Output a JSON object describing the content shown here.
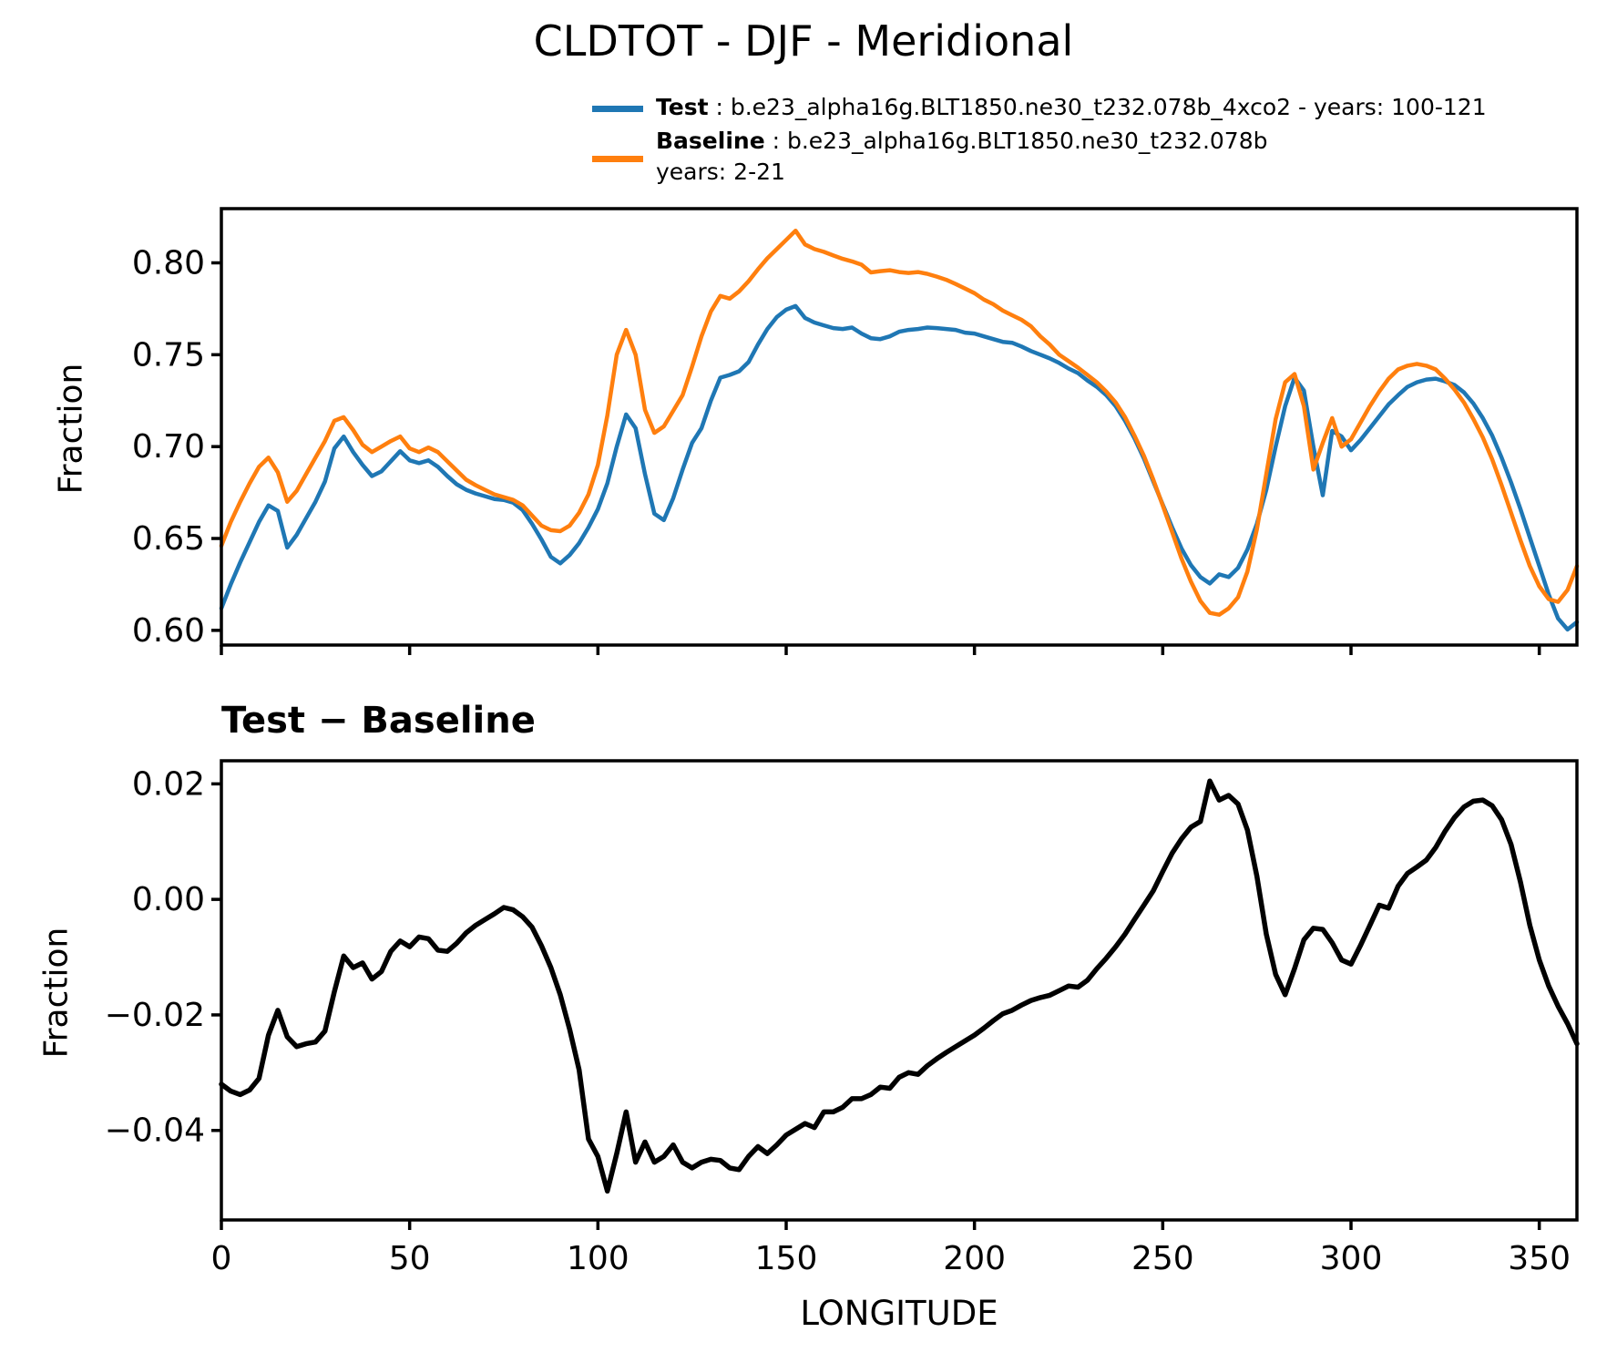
{
  "title": "CLDTOT - DJF - Meridional",
  "legend": {
    "test_label": "Test",
    "test_desc": " : b.e23_alpha16g.BLT1850.ne30_t232.078b_4xco2 - years: 100-121",
    "baseline_label": "Baseline",
    "baseline_desc": " : b.e23_alpha16g.BLT1850.ne30_t232.078b",
    "baseline_years": "years: 2-21",
    "location": "above-axes-right"
  },
  "colors": {
    "test": "#1f77b4",
    "baseline": "#ff7f0e",
    "diff": "#000000",
    "axis": "#000000"
  },
  "chart_data": [
    {
      "type": "line",
      "title": "",
      "ylabel": "Fraction",
      "xlabel": "",
      "xlim": [
        0,
        360
      ],
      "ylim": [
        0.592,
        0.8295
      ],
      "grid": false,
      "yticks": [
        0.8,
        0.75,
        0.7,
        0.65,
        0.6
      ],
      "ytick_labels": [
        "0.80",
        "0.75",
        "0.70",
        "0.65",
        "0.60"
      ],
      "xticks": [
        0,
        50,
        100,
        150,
        200,
        250,
        300,
        350
      ],
      "xtick_labels": [
        "0",
        "50",
        "100",
        "150",
        "200",
        "250",
        "300",
        "350"
      ],
      "show_xtick_labels": false,
      "x": [
        0,
        2.5,
        5,
        7.5,
        10,
        12.5,
        15,
        17.5,
        20,
        22.5,
        25,
        27.5,
        30,
        32.5,
        35,
        37.5,
        40,
        42.5,
        45,
        47.5,
        50,
        52.5,
        55,
        57.5,
        60,
        62.5,
        65,
        67.5,
        70,
        72.5,
        75,
        77.5,
        80,
        82.5,
        85,
        87.5,
        90,
        92.5,
        95,
        97.5,
        100,
        102.5,
        105,
        107.5,
        110,
        112.5,
        115,
        117.5,
        120,
        122.5,
        125,
        127.5,
        130,
        132.5,
        135,
        137.5,
        140,
        142.5,
        145,
        147.5,
        150,
        152.5,
        155,
        157.5,
        160,
        162.5,
        165,
        167.5,
        170,
        172.5,
        175,
        177.5,
        180,
        182.5,
        185,
        187.5,
        190,
        192.5,
        195,
        197.5,
        200,
        202.5,
        205,
        207.5,
        210,
        212.5,
        215,
        217.5,
        220,
        222.5,
        225,
        227.5,
        230,
        232.5,
        235,
        237.5,
        240,
        242.5,
        245,
        247.5,
        250,
        252.5,
        255,
        257.5,
        260,
        262.5,
        265,
        267.5,
        270,
        272.5,
        275,
        277.5,
        280,
        282.5,
        285,
        287.5,
        290,
        292.5,
        295,
        297.5,
        300,
        302.5,
        305,
        307.5,
        310,
        312.5,
        315,
        317.5,
        320,
        322.5,
        325,
        327.5,
        330,
        332.5,
        335,
        337.5,
        340,
        342.5,
        345,
        347.5,
        350,
        352.5,
        355,
        357.5,
        360
      ],
      "series": [
        {
          "name": "Test",
          "color": "#1f77b4",
          "values": [
            0.612,
            0.625,
            0.637,
            0.648,
            0.659,
            0.668,
            0.665,
            0.645,
            0.652,
            0.661,
            0.67,
            0.681,
            0.699,
            0.7055,
            0.697,
            0.69,
            0.684,
            0.6865,
            0.692,
            0.6975,
            0.6925,
            0.691,
            0.6925,
            0.689,
            0.684,
            0.6795,
            0.6765,
            0.6745,
            0.673,
            0.6715,
            0.671,
            0.6695,
            0.6655,
            0.658,
            0.6495,
            0.64,
            0.6365,
            0.641,
            0.6475,
            0.656,
            0.666,
            0.68,
            0.7,
            0.7175,
            0.71,
            0.685,
            0.6635,
            0.66,
            0.672,
            0.6875,
            0.702,
            0.71,
            0.725,
            0.7375,
            0.739,
            0.741,
            0.746,
            0.7555,
            0.764,
            0.7705,
            0.7745,
            0.7765,
            0.77,
            0.7675,
            0.766,
            0.7645,
            0.764,
            0.7648,
            0.7615,
            0.759,
            0.7585,
            0.76,
            0.7625,
            0.7635,
            0.764,
            0.7648,
            0.7645,
            0.764,
            0.7635,
            0.762,
            0.7615,
            0.76,
            0.7585,
            0.757,
            0.7565,
            0.7545,
            0.752,
            0.75,
            0.748,
            0.7455,
            0.7425,
            0.74,
            0.736,
            0.7325,
            0.728,
            0.722,
            0.714,
            0.7045,
            0.6935,
            0.681,
            0.6685,
            0.656,
            0.6445,
            0.6355,
            0.629,
            0.6255,
            0.6305,
            0.629,
            0.634,
            0.644,
            0.658,
            0.6765,
            0.7,
            0.722,
            0.7375,
            0.7305,
            0.7,
            0.6735,
            0.7085,
            0.7055,
            0.698,
            0.7035,
            0.71,
            0.7165,
            0.723,
            0.728,
            0.7325,
            0.735,
            0.7365,
            0.737,
            0.7355,
            0.7335,
            0.7295,
            0.7235,
            0.7155,
            0.706,
            0.694,
            0.6805,
            0.666,
            0.6505,
            0.635,
            0.6195,
            0.6065,
            0.6005,
            0.6045
          ]
        },
        {
          "name": "Baseline",
          "color": "#ff7f0e",
          "values": [
            0.646,
            0.659,
            0.67,
            0.68,
            0.689,
            0.694,
            0.686,
            0.67,
            0.676,
            0.685,
            0.694,
            0.703,
            0.714,
            0.716,
            0.709,
            0.701,
            0.697,
            0.7,
            0.703,
            0.7055,
            0.699,
            0.697,
            0.6995,
            0.697,
            0.692,
            0.687,
            0.682,
            0.679,
            0.6765,
            0.674,
            0.6725,
            0.671,
            0.668,
            0.6625,
            0.657,
            0.6545,
            0.654,
            0.657,
            0.664,
            0.674,
            0.69,
            0.717,
            0.75,
            0.7635,
            0.75,
            0.72,
            0.7075,
            0.711,
            0.7195,
            0.728,
            0.7435,
            0.76,
            0.7735,
            0.782,
            0.7805,
            0.7845,
            0.79,
            0.7965,
            0.8025,
            0.8075,
            0.8125,
            0.8175,
            0.81,
            0.8075,
            0.806,
            0.804,
            0.8022,
            0.8008,
            0.799,
            0.7948,
            0.7955,
            0.796,
            0.795,
            0.7945,
            0.795,
            0.794,
            0.7925,
            0.7908,
            0.7885,
            0.786,
            0.7835,
            0.78,
            0.7775,
            0.774,
            0.7715,
            0.769,
            0.7655,
            0.76,
            0.7555,
            0.75,
            0.7465,
            0.743,
            0.739,
            0.735,
            0.73,
            0.724,
            0.716,
            0.706,
            0.695,
            0.682,
            0.668,
            0.6535,
            0.639,
            0.6265,
            0.616,
            0.6095,
            0.6085,
            0.612,
            0.618,
            0.632,
            0.655,
            0.685,
            0.715,
            0.735,
            0.7395,
            0.722,
            0.6875,
            0.702,
            0.7155,
            0.7,
            0.704,
            0.713,
            0.722,
            0.73,
            0.737,
            0.742,
            0.744,
            0.745,
            0.744,
            0.742,
            0.737,
            0.731,
            0.724,
            0.715,
            0.705,
            0.693,
            0.679,
            0.664,
            0.649,
            0.635,
            0.624,
            0.617,
            0.6155,
            0.622,
            0.635
          ]
        }
      ]
    },
    {
      "type": "line",
      "title": "Test − Baseline",
      "ylabel": "Fraction",
      "xlabel": "LONGITUDE",
      "xlim": [
        0,
        360
      ],
      "ylim": [
        -0.0555,
        0.024
      ],
      "grid": false,
      "yticks": [
        0.02,
        0.0,
        -0.02,
        -0.04
      ],
      "ytick_labels": [
        "0.02",
        "0.00",
        "−0.02",
        "−0.04"
      ],
      "xticks": [
        0,
        50,
        100,
        150,
        200,
        250,
        300,
        350
      ],
      "xtick_labels": [
        "0",
        "50",
        "100",
        "150",
        "200",
        "250",
        "300",
        "350"
      ],
      "show_xtick_labels": true,
      "x": [
        0,
        2.5,
        5,
        7.5,
        10,
        12.5,
        15,
        17.5,
        20,
        22.5,
        25,
        27.5,
        30,
        32.5,
        35,
        37.5,
        40,
        42.5,
        45,
        47.5,
        50,
        52.5,
        55,
        57.5,
        60,
        62.5,
        65,
        67.5,
        70,
        72.5,
        75,
        77.5,
        80,
        82.5,
        85,
        87.5,
        90,
        92.5,
        95,
        97.5,
        100,
        102.5,
        105,
        107.5,
        110,
        112.5,
        115,
        117.5,
        120,
        122.5,
        125,
        127.5,
        130,
        132.5,
        135,
        137.5,
        140,
        142.5,
        145,
        147.5,
        150,
        152.5,
        155,
        157.5,
        160,
        162.5,
        165,
        167.5,
        170,
        172.5,
        175,
        177.5,
        180,
        182.5,
        185,
        187.5,
        190,
        192.5,
        195,
        197.5,
        200,
        202.5,
        205,
        207.5,
        210,
        212.5,
        215,
        217.5,
        220,
        222.5,
        225,
        227.5,
        230,
        232.5,
        235,
        237.5,
        240,
        242.5,
        245,
        247.5,
        250,
        252.5,
        255,
        257.5,
        260,
        262.5,
        265,
        267.5,
        270,
        272.5,
        275,
        277.5,
        280,
        282.5,
        285,
        287.5,
        290,
        292.5,
        295,
        297.5,
        300,
        302.5,
        305,
        307.5,
        310,
        312.5,
        315,
        317.5,
        320,
        322.5,
        325,
        327.5,
        330,
        332.5,
        335,
        337.5,
        340,
        342.5,
        345,
        347.5,
        350,
        352.5,
        355,
        357.5,
        360
      ],
      "series": [
        {
          "name": "Test − Baseline",
          "color": "#000000",
          "values": [
            -0.032,
            -0.0332,
            -0.0338,
            -0.033,
            -0.031,
            -0.0235,
            -0.0192,
            -0.0238,
            -0.0255,
            -0.025,
            -0.0247,
            -0.0228,
            -0.016,
            -0.0098,
            -0.0118,
            -0.011,
            -0.0138,
            -0.0125,
            -0.009,
            -0.0072,
            -0.0082,
            -0.0065,
            -0.0068,
            -0.0088,
            -0.009,
            -0.0076,
            -0.0058,
            -0.0045,
            -0.0035,
            -0.0025,
            -0.0014,
            -0.0018,
            -0.003,
            -0.0048,
            -0.008,
            -0.0118,
            -0.0165,
            -0.0225,
            -0.0295,
            -0.0415,
            -0.0445,
            -0.0505,
            -0.044,
            -0.0368,
            -0.0455,
            -0.042,
            -0.0455,
            -0.0445,
            -0.0425,
            -0.0455,
            -0.0465,
            -0.0455,
            -0.045,
            -0.0452,
            -0.0465,
            -0.0468,
            -0.0445,
            -0.0428,
            -0.044,
            -0.0425,
            -0.0408,
            -0.0398,
            -0.0388,
            -0.0395,
            -0.0368,
            -0.0368,
            -0.036,
            -0.0345,
            -0.0345,
            -0.0338,
            -0.0325,
            -0.0327,
            -0.0308,
            -0.03,
            -0.0303,
            -0.0288,
            -0.0276,
            -0.0265,
            -0.0255,
            -0.0245,
            -0.0235,
            -0.0223,
            -0.021,
            -0.0198,
            -0.0192,
            -0.0183,
            -0.0175,
            -0.017,
            -0.0166,
            -0.0158,
            -0.015,
            -0.0152,
            -0.014,
            -0.012,
            -0.0102,
            -0.0082,
            -0.006,
            -0.0035,
            -0.001,
            0.0015,
            0.0048,
            0.008,
            0.0105,
            0.0125,
            0.0135,
            0.0205,
            0.0172,
            0.018,
            0.0165,
            0.012,
            0.004,
            -0.006,
            -0.013,
            -0.0165,
            -0.012,
            -0.007,
            -0.005,
            -0.0052,
            -0.0075,
            -0.0105,
            -0.0112,
            -0.008,
            -0.0045,
            -0.001,
            -0.0015,
            0.0023,
            0.0045,
            0.0056,
            0.0068,
            0.009,
            0.0118,
            0.0142,
            0.016,
            0.017,
            0.0172,
            0.0162,
            0.0138,
            0.0095,
            0.003,
            -0.0045,
            -0.0105,
            -0.015,
            -0.0185,
            -0.0215,
            -0.025
          ]
        }
      ]
    }
  ]
}
